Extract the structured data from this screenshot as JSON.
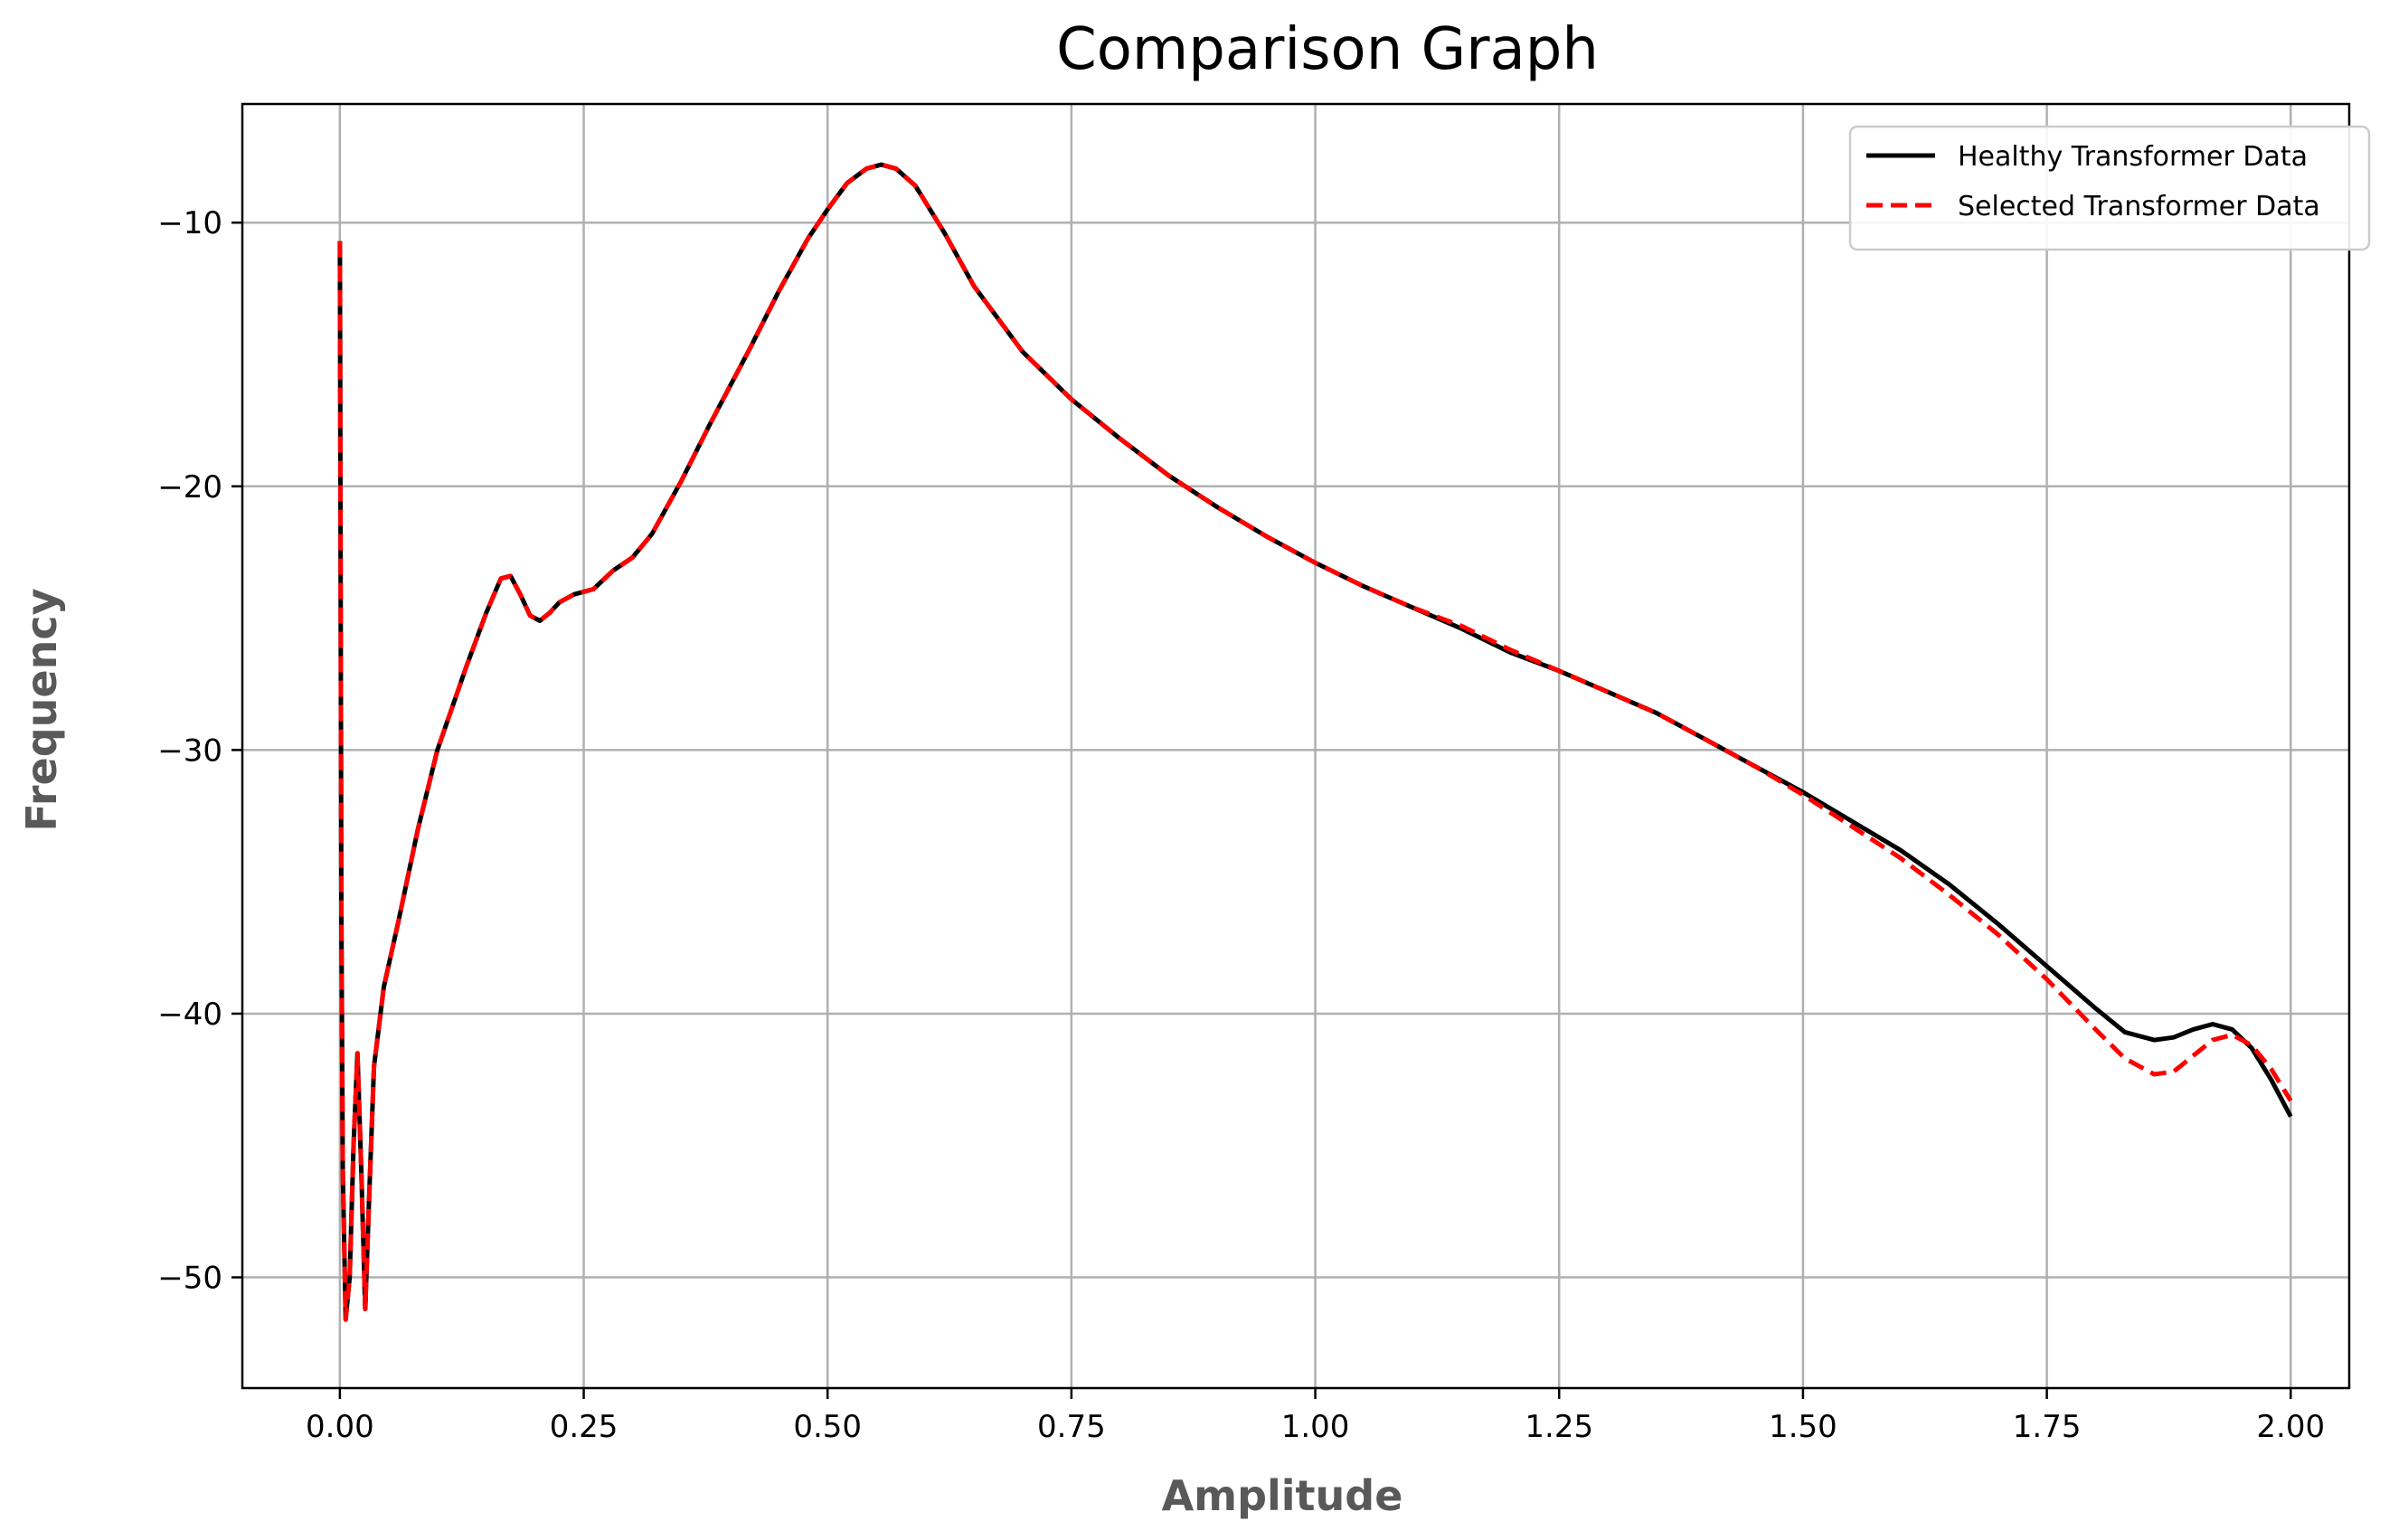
{
  "chart_data": {
    "type": "line",
    "title": "Comparison Graph",
    "xlabel": "Amplitude",
    "ylabel": "Frequency",
    "xlim": [
      -0.1,
      2.06
    ],
    "ylim": [
      -54.2,
      -5.5
    ],
    "xticks": [
      0.0,
      0.25,
      0.5,
      0.75,
      1.0,
      1.25,
      1.5,
      1.75,
      2.0
    ],
    "xtick_labels": [
      "0.00",
      "0.25",
      "0.50",
      "0.75",
      "1.00",
      "1.25",
      "1.50",
      "1.75",
      "2.00"
    ],
    "yticks": [
      -50,
      -40,
      -30,
      -20,
      -10
    ],
    "ytick_labels": [
      "−50",
      "−40",
      "−30",
      "−20",
      "−10"
    ],
    "grid": true,
    "legend_position": "top-right",
    "series": [
      {
        "name": "Healthy Transformer Data",
        "color": "#000000",
        "style": "solid",
        "points": [
          [
            0.0,
            -10.7
          ],
          [
            0.0015,
            -36
          ],
          [
            0.003,
            -46
          ],
          [
            0.006,
            -51.6
          ],
          [
            0.01,
            -50
          ],
          [
            0.014,
            -45
          ],
          [
            0.018,
            -41.5
          ],
          [
            0.022,
            -46
          ],
          [
            0.026,
            -51.2
          ],
          [
            0.03,
            -47
          ],
          [
            0.035,
            -42
          ],
          [
            0.045,
            -39
          ],
          [
            0.06,
            -36.5
          ],
          [
            0.08,
            -33
          ],
          [
            0.1,
            -30
          ],
          [
            0.13,
            -26.8
          ],
          [
            0.15,
            -24.8
          ],
          [
            0.165,
            -23.5
          ],
          [
            0.175,
            -23.4
          ],
          [
            0.185,
            -24.1
          ],
          [
            0.195,
            -24.9
          ],
          [
            0.205,
            -25.1
          ],
          [
            0.215,
            -24.8
          ],
          [
            0.225,
            -24.4
          ],
          [
            0.24,
            -24.1
          ],
          [
            0.26,
            -23.9
          ],
          [
            0.28,
            -23.2
          ],
          [
            0.3,
            -22.7
          ],
          [
            0.32,
            -21.8
          ],
          [
            0.35,
            -19.8
          ],
          [
            0.38,
            -17.6
          ],
          [
            0.42,
            -14.8
          ],
          [
            0.45,
            -12.6
          ],
          [
            0.48,
            -10.6
          ],
          [
            0.5,
            -9.5
          ],
          [
            0.52,
            -8.5
          ],
          [
            0.54,
            -7.95
          ],
          [
            0.555,
            -7.8
          ],
          [
            0.57,
            -7.95
          ],
          [
            0.59,
            -8.6
          ],
          [
            0.62,
            -10.4
          ],
          [
            0.65,
            -12.4
          ],
          [
            0.7,
            -14.9
          ],
          [
            0.75,
            -16.7
          ],
          [
            0.8,
            -18.2
          ],
          [
            0.85,
            -19.6
          ],
          [
            0.9,
            -20.8
          ],
          [
            0.95,
            -21.9
          ],
          [
            1.0,
            -22.9
          ],
          [
            1.05,
            -23.8
          ],
          [
            1.1,
            -24.6
          ],
          [
            1.15,
            -25.4
          ],
          [
            1.2,
            -26.3
          ],
          [
            1.25,
            -27.0
          ],
          [
            1.3,
            -27.8
          ],
          [
            1.35,
            -28.6
          ],
          [
            1.4,
            -29.6
          ],
          [
            1.45,
            -30.6
          ],
          [
            1.5,
            -31.6
          ],
          [
            1.55,
            -32.7
          ],
          [
            1.6,
            -33.8
          ],
          [
            1.65,
            -35.1
          ],
          [
            1.7,
            -36.6
          ],
          [
            1.75,
            -38.2
          ],
          [
            1.8,
            -39.8
          ],
          [
            1.83,
            -40.7
          ],
          [
            1.86,
            -41.0
          ],
          [
            1.88,
            -40.9
          ],
          [
            1.9,
            -40.6
          ],
          [
            1.92,
            -40.4
          ],
          [
            1.94,
            -40.6
          ],
          [
            1.96,
            -41.3
          ],
          [
            1.98,
            -42.5
          ],
          [
            2.0,
            -43.9
          ]
        ]
      },
      {
        "name": "Selected Transformer Data",
        "color": "#ff0000",
        "style": "dashed",
        "points": [
          [
            0.0,
            -10.7
          ],
          [
            0.0015,
            -36
          ],
          [
            0.003,
            -46
          ],
          [
            0.006,
            -51.6
          ],
          [
            0.01,
            -50
          ],
          [
            0.014,
            -45
          ],
          [
            0.018,
            -41.5
          ],
          [
            0.022,
            -46
          ],
          [
            0.026,
            -51.2
          ],
          [
            0.03,
            -47
          ],
          [
            0.035,
            -42
          ],
          [
            0.045,
            -39
          ],
          [
            0.06,
            -36.5
          ],
          [
            0.08,
            -33
          ],
          [
            0.1,
            -30
          ],
          [
            0.13,
            -26.8
          ],
          [
            0.15,
            -24.8
          ],
          [
            0.165,
            -23.5
          ],
          [
            0.175,
            -23.4
          ],
          [
            0.185,
            -24.1
          ],
          [
            0.195,
            -24.9
          ],
          [
            0.205,
            -25.1
          ],
          [
            0.215,
            -24.8
          ],
          [
            0.225,
            -24.4
          ],
          [
            0.24,
            -24.1
          ],
          [
            0.26,
            -23.9
          ],
          [
            0.28,
            -23.2
          ],
          [
            0.3,
            -22.7
          ],
          [
            0.32,
            -21.8
          ],
          [
            0.35,
            -19.8
          ],
          [
            0.38,
            -17.6
          ],
          [
            0.42,
            -14.8
          ],
          [
            0.45,
            -12.6
          ],
          [
            0.48,
            -10.6
          ],
          [
            0.5,
            -9.5
          ],
          [
            0.52,
            -8.5
          ],
          [
            0.54,
            -7.95
          ],
          [
            0.555,
            -7.8
          ],
          [
            0.57,
            -7.95
          ],
          [
            0.59,
            -8.6
          ],
          [
            0.62,
            -10.4
          ],
          [
            0.65,
            -12.4
          ],
          [
            0.7,
            -14.9
          ],
          [
            0.75,
            -16.7
          ],
          [
            0.8,
            -18.2
          ],
          [
            0.85,
            -19.6
          ],
          [
            0.9,
            -20.8
          ],
          [
            0.95,
            -21.9
          ],
          [
            1.0,
            -22.9
          ],
          [
            1.05,
            -23.8
          ],
          [
            1.1,
            -24.6
          ],
          [
            1.15,
            -25.3
          ],
          [
            1.2,
            -26.2
          ],
          [
            1.25,
            -27.0
          ],
          [
            1.3,
            -27.8
          ],
          [
            1.35,
            -28.6
          ],
          [
            1.4,
            -29.6
          ],
          [
            1.45,
            -30.6
          ],
          [
            1.5,
            -31.7
          ],
          [
            1.55,
            -32.9
          ],
          [
            1.6,
            -34.1
          ],
          [
            1.65,
            -35.5
          ],
          [
            1.7,
            -37.0
          ],
          [
            1.75,
            -38.7
          ],
          [
            1.8,
            -40.6
          ],
          [
            1.83,
            -41.7
          ],
          [
            1.86,
            -42.3
          ],
          [
            1.88,
            -42.2
          ],
          [
            1.9,
            -41.6
          ],
          [
            1.92,
            -41.0
          ],
          [
            1.94,
            -40.8
          ],
          [
            1.96,
            -41.2
          ],
          [
            1.98,
            -42.1
          ],
          [
            2.0,
            -43.3
          ]
        ]
      }
    ]
  }
}
